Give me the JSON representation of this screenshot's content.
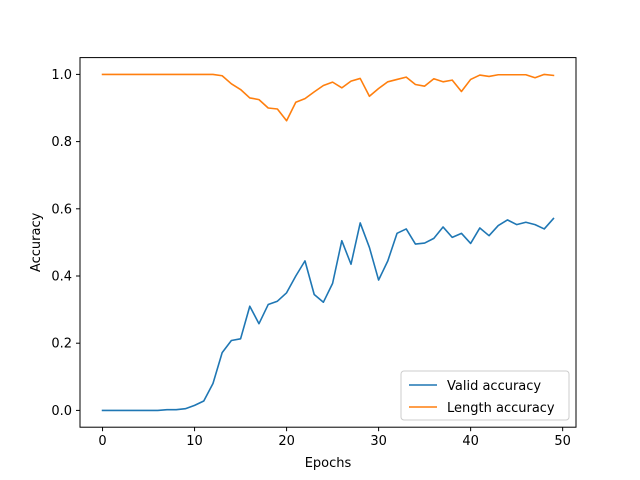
{
  "chart_data": {
    "type": "line",
    "xlabel": "Epochs",
    "ylabel": "Accuracy",
    "xlim": [
      -2.45,
      51.45
    ],
    "ylim": [
      -0.05,
      1.05
    ],
    "xticks": [
      0,
      10,
      20,
      30,
      40,
      50
    ],
    "yticks": [
      0.0,
      0.2,
      0.4,
      0.6,
      0.8,
      1.0
    ],
    "xtick_labels": [
      "0",
      "10",
      "20",
      "30",
      "40",
      "50"
    ],
    "ytick_labels": [
      "0.0",
      "0.2",
      "0.4",
      "0.6",
      "0.8",
      "1.0"
    ],
    "grid": false,
    "legend_position": "lower-right",
    "x": [
      0,
      1,
      2,
      3,
      4,
      5,
      6,
      7,
      8,
      9,
      10,
      11,
      12,
      13,
      14,
      15,
      16,
      17,
      18,
      19,
      20,
      21,
      22,
      23,
      24,
      25,
      26,
      27,
      28,
      29,
      30,
      31,
      32,
      33,
      34,
      35,
      36,
      37,
      38,
      39,
      40,
      41,
      42,
      43,
      44,
      45,
      46,
      47,
      48,
      49
    ],
    "series": [
      {
        "name": "Valid accuracy",
        "color": "#1f77b4",
        "values": [
          0.0,
          0.0,
          0.0,
          0.0,
          0.0,
          0.0,
          0.0,
          0.002,
          0.002,
          0.005,
          0.015,
          0.028,
          0.08,
          0.172,
          0.208,
          0.213,
          0.31,
          0.258,
          0.315,
          0.325,
          0.35,
          0.4,
          0.445,
          0.345,
          0.322,
          0.378,
          0.505,
          0.435,
          0.558,
          0.485,
          0.388,
          0.445,
          0.527,
          0.54,
          0.495,
          0.498,
          0.512,
          0.546,
          0.515,
          0.527,
          0.497,
          0.543,
          0.52,
          0.55,
          0.567,
          0.553,
          0.56,
          0.553,
          0.54,
          0.571
        ]
      },
      {
        "name": "Length accuracy",
        "color": "#ff7f0e",
        "values": [
          1.0,
          1.0,
          1.0,
          1.0,
          1.0,
          1.0,
          1.0,
          1.0,
          1.0,
          1.0,
          1.0,
          1.0,
          1.0,
          0.996,
          0.972,
          0.955,
          0.93,
          0.925,
          0.9,
          0.897,
          0.862,
          0.917,
          0.928,
          0.948,
          0.967,
          0.977,
          0.96,
          0.98,
          0.988,
          0.935,
          0.958,
          0.978,
          0.985,
          0.992,
          0.97,
          0.965,
          0.987,
          0.978,
          0.983,
          0.949,
          0.985,
          0.998,
          0.994,
          0.999,
          0.999,
          0.999,
          0.999,
          0.99,
          1.0,
          0.997
        ]
      }
    ]
  }
}
